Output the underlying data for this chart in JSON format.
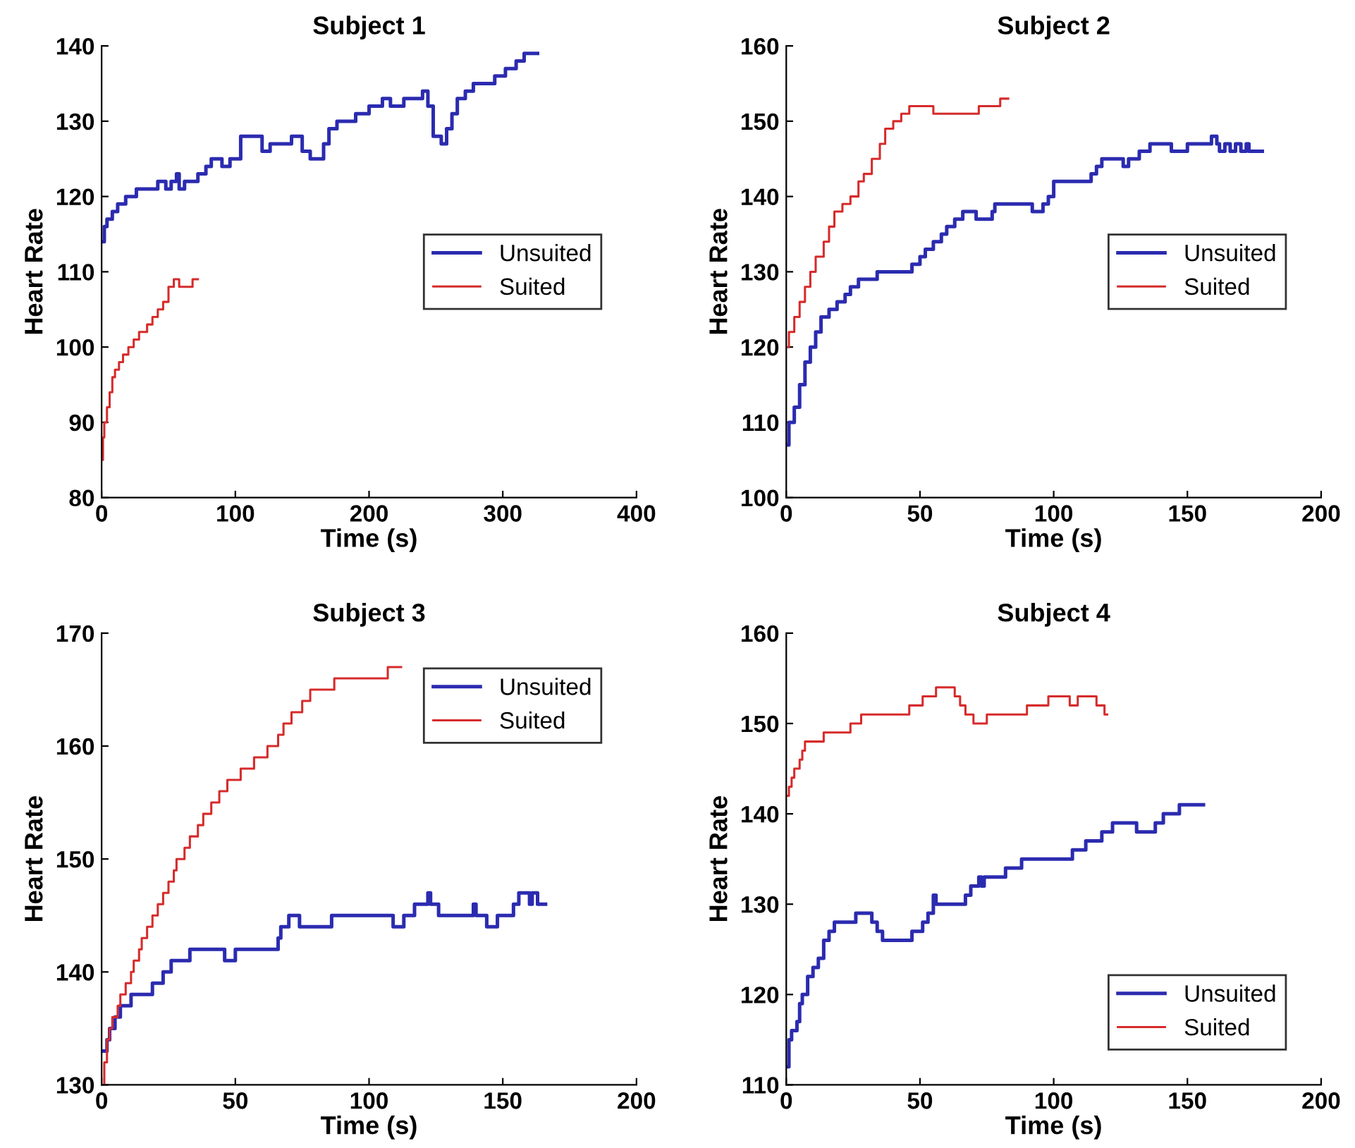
{
  "chart_data": [
    {
      "type": "step",
      "title": "Subject 1",
      "xlabel": "Time (s)",
      "ylabel": "Heart Rate",
      "xlim": [
        0,
        400
      ],
      "xticks": [
        0,
        100,
        200,
        300,
        400
      ],
      "ylim": [
        80,
        140
      ],
      "yticks": [
        80,
        90,
        100,
        110,
        120,
        130,
        140
      ],
      "legend": "right",
      "grid": false,
      "series": [
        {
          "name": "Unsuited",
          "color": "#2b2bb0",
          "x": [
            0,
            2,
            4,
            8,
            12,
            18,
            26,
            42,
            48,
            52,
            56,
            58,
            62,
            72,
            78,
            82,
            90,
            96,
            104,
            116,
            120,
            126,
            140,
            142,
            146,
            150,
            156,
            162,
            166,
            170,
            176,
            190,
            200,
            210,
            216,
            226,
            240,
            244,
            248,
            254,
            258,
            262,
            266,
            272,
            278,
            294,
            302,
            310,
            316,
            326
          ],
          "values": [
            114,
            116,
            117,
            118,
            119,
            120,
            121,
            122,
            121,
            122,
            123,
            121,
            122,
            123,
            124,
            125,
            124,
            125,
            128,
            128,
            126,
            127,
            127,
            128,
            128,
            126,
            125,
            125,
            127,
            129,
            130,
            131,
            132,
            133,
            132,
            133,
            134,
            132,
            128,
            127,
            129,
            131,
            133,
            134,
            135,
            136,
            137,
            138,
            139,
            139
          ]
        },
        {
          "name": "Suited",
          "color": "#d62b2b",
          "x": [
            0,
            1,
            2,
            4,
            6,
            8,
            10,
            13,
            16,
            20,
            24,
            28,
            34,
            38,
            42,
            46,
            50,
            54,
            58,
            64,
            68,
            72
          ],
          "values": [
            85,
            88,
            90,
            92,
            94,
            96,
            97,
            98,
            99,
            100,
            101,
            102,
            103,
            104,
            105,
            106,
            108,
            109,
            108,
            108,
            109,
            109
          ]
        }
      ]
    },
    {
      "type": "step",
      "title": "Subject 2",
      "xlabel": "Time (s)",
      "ylabel": "Heart Rate",
      "xlim": [
        0,
        200
      ],
      "xticks": [
        0,
        50,
        100,
        150,
        200
      ],
      "ylim": [
        100,
        160
      ],
      "yticks": [
        100,
        110,
        120,
        130,
        140,
        150,
        160
      ],
      "legend": "right",
      "grid": false,
      "series": [
        {
          "name": "Unsuited",
          "color": "#2b2bb0",
          "x": [
            0,
            1,
            3,
            5,
            7,
            9,
            11,
            13,
            16,
            19,
            22,
            24,
            27,
            34,
            47,
            50,
            52,
            55,
            58,
            60,
            63,
            66,
            71,
            77,
            78,
            90,
            92,
            96,
            98,
            100,
            113,
            114,
            116,
            118,
            123,
            126,
            128,
            132,
            136,
            144,
            150,
            158,
            159,
            161,
            162,
            164,
            166,
            168,
            170,
            172,
            173,
            178
          ],
          "values": [
            107,
            110,
            112,
            115,
            118,
            120,
            122,
            124,
            125,
            126,
            127,
            128,
            129,
            130,
            131,
            132,
            133,
            134,
            135,
            136,
            137,
            138,
            137,
            138,
            139,
            139,
            138,
            139,
            140,
            142,
            142,
            143,
            144,
            145,
            145,
            144,
            145,
            146,
            147,
            146,
            147,
            147,
            148,
            147,
            146,
            147,
            146,
            147,
            146,
            147,
            146,
            146
          ]
        },
        {
          "name": "Suited",
          "color": "#d62b2b",
          "x": [
            0,
            1,
            3,
            5,
            7,
            9,
            11,
            14,
            16,
            18,
            21,
            24,
            27,
            29,
            32,
            35,
            37,
            40,
            43,
            46,
            55,
            72,
            80,
            83
          ],
          "values": [
            120,
            122,
            124,
            126,
            128,
            130,
            132,
            134,
            136,
            138,
            139,
            140,
            142,
            143,
            145,
            147,
            149,
            150,
            151,
            152,
            151,
            152,
            153,
            153
          ]
        }
      ]
    },
    {
      "type": "step",
      "title": "Subject 3",
      "xlabel": "Time (s)",
      "ylabel": "Heart Rate",
      "xlim": [
        0,
        200
      ],
      "xticks": [
        0,
        50,
        100,
        150,
        200
      ],
      "ylim": [
        130,
        170
      ],
      "yticks": [
        130,
        140,
        150,
        160,
        170
      ],
      "legend": "top right",
      "grid": false,
      "series": [
        {
          "name": "Unsuited",
          "color": "#2b2bb0",
          "x": [
            0,
            2,
            3,
            5,
            7,
            11,
            19,
            23,
            26,
            33,
            46,
            50,
            66,
            67,
            70,
            74,
            86,
            109,
            113,
            117,
            122,
            123,
            126,
            139,
            140,
            144,
            148,
            154,
            156,
            160,
            161,
            163,
            166
          ],
          "values": [
            133,
            134,
            135,
            136,
            137,
            138,
            139,
            140,
            141,
            142,
            141,
            142,
            143,
            144,
            145,
            144,
            145,
            144,
            145,
            146,
            147,
            146,
            145,
            146,
            145,
            144,
            145,
            146,
            147,
            146,
            147,
            146,
            146
          ]
        },
        {
          "name": "Suited",
          "color": "#d62b2b",
          "x": [
            0,
            1,
            2,
            3,
            4,
            6,
            7,
            9,
            11,
            12,
            14,
            15,
            17,
            19,
            21,
            23,
            25,
            27,
            28,
            31,
            33,
            36,
            38,
            41,
            44,
            47,
            52,
            57,
            62,
            66,
            68,
            71,
            75,
            78,
            87,
            107,
            112
          ],
          "values": [
            130,
            132,
            134,
            135,
            136,
            137,
            138,
            139,
            140,
            141,
            142,
            143,
            144,
            145,
            146,
            147,
            148,
            149,
            150,
            151,
            152,
            153,
            154,
            155,
            156,
            157,
            158,
            159,
            160,
            161,
            162,
            163,
            164,
            165,
            166,
            167,
            167
          ]
        }
      ]
    },
    {
      "type": "step",
      "title": "Subject 4",
      "xlabel": "Time (s)",
      "ylabel": "Heart Rate",
      "xlim": [
        0,
        200
      ],
      "xticks": [
        0,
        50,
        100,
        150,
        200
      ],
      "ylim": [
        110,
        160
      ],
      "yticks": [
        110,
        120,
        130,
        140,
        150,
        160
      ],
      "legend": "bottom right",
      "grid": false,
      "series": [
        {
          "name": "Unsuited",
          "color": "#2b2bb0",
          "x": [
            0,
            1,
            2,
            4,
            5,
            6,
            8,
            10,
            12,
            14,
            16,
            18,
            26,
            32,
            34,
            36,
            47,
            51,
            53,
            55,
            56,
            67,
            69,
            72,
            73,
            74,
            82,
            88,
            107,
            112,
            118,
            122,
            131,
            138,
            141,
            147,
            156
          ],
          "values": [
            112,
            115,
            116,
            117,
            119,
            120,
            122,
            123,
            124,
            126,
            127,
            128,
            129,
            128,
            127,
            126,
            127,
            128,
            129,
            131,
            130,
            131,
            132,
            133,
            132,
            133,
            134,
            135,
            136,
            137,
            138,
            139,
            138,
            139,
            140,
            141,
            141
          ]
        },
        {
          "name": "Suited",
          "color": "#d62b2b",
          "x": [
            0,
            1,
            2,
            3,
            5,
            6,
            7,
            14,
            24,
            28,
            46,
            51,
            56,
            63,
            65,
            67,
            70,
            75,
            90,
            98,
            106,
            109,
            116,
            119,
            120
          ],
          "values": [
            142,
            143,
            144,
            145,
            146,
            147,
            148,
            149,
            150,
            151,
            152,
            153,
            154,
            153,
            152,
            151,
            150,
            151,
            152,
            153,
            152,
            153,
            152,
            151,
            151
          ]
        }
      ]
    }
  ]
}
